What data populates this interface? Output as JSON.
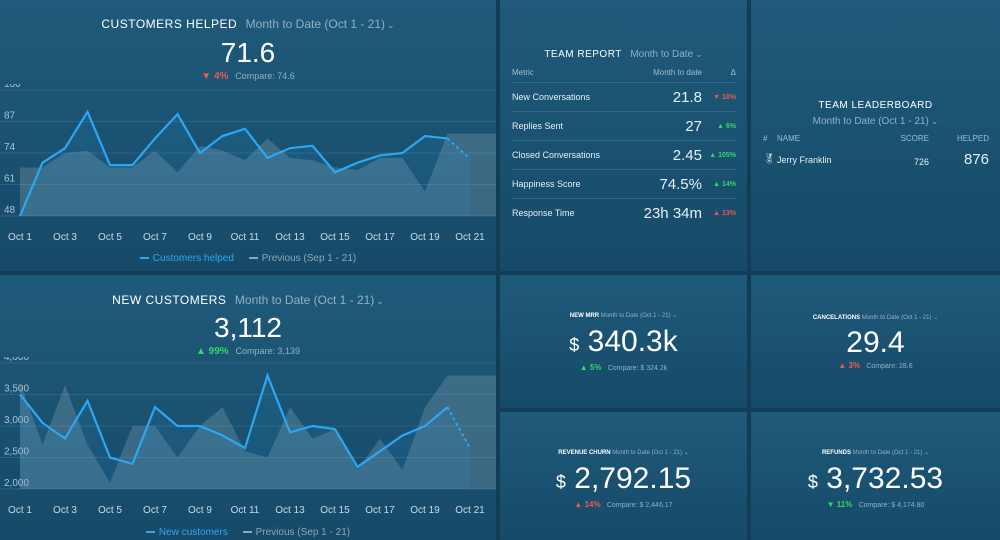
{
  "customers_helped": {
    "title": "CUSTOMERS HELPED",
    "period": "Month to Date (Oct 1 - 21)",
    "value": "71.6",
    "change": "4%",
    "compare": "Compare: 74.6",
    "legend": [
      "Customers helped",
      "Previous (Sep 1 - 21)"
    ],
    "chart_data": {
      "type": "line",
      "x": [
        "Oct 1",
        "Oct 2",
        "Oct 3",
        "Oct 4",
        "Oct 5",
        "Oct 6",
        "Oct 7",
        "Oct 8",
        "Oct 9",
        "Oct 10",
        "Oct 11",
        "Oct 12",
        "Oct 13",
        "Oct 14",
        "Oct 15",
        "Oct 16",
        "Oct 17",
        "Oct 18",
        "Oct 19",
        "Oct 20",
        "Oct 21"
      ],
      "xticks": [
        "Oct 1",
        "Oct 3",
        "Oct 5",
        "Oct 7",
        "Oct 9",
        "Oct 11",
        "Oct 13",
        "Oct 15",
        "Oct 17",
        "Oct 19",
        "Oct 21"
      ],
      "yticks": [
        100,
        87,
        74,
        61,
        48
      ],
      "ylim": [
        48,
        100
      ],
      "series": [
        {
          "name": "Customers helped",
          "values": [
            48,
            70,
            76,
            91,
            69,
            69,
            80,
            90,
            74,
            81,
            84,
            72,
            76,
            77,
            66,
            70,
            73,
            74,
            81,
            80,
            71.6
          ],
          "color": "#2da6f3"
        },
        {
          "name": "Previous (Sep 1 - 21)",
          "values": [
            68,
            68,
            74,
            75,
            68,
            68,
            75,
            66,
            77,
            75,
            71,
            80,
            72,
            71,
            68,
            67,
            72,
            72,
            58,
            82,
            82
          ],
          "color": "#8fa6b5"
        }
      ]
    }
  },
  "new_customers": {
    "title": "NEW CUSTOMERS",
    "period": "Month to Date (Oct 1 - 21)",
    "value": "3,112",
    "change": "99%",
    "compare": "Compare: 3,139",
    "legend": [
      "New customers",
      "Previous (Sep 1 - 21)"
    ],
    "chart_data": {
      "type": "line",
      "x": [
        "Oct 1",
        "Oct 2",
        "Oct 3",
        "Oct 4",
        "Oct 5",
        "Oct 6",
        "Oct 7",
        "Oct 8",
        "Oct 9",
        "Oct 10",
        "Oct 11",
        "Oct 12",
        "Oct 13",
        "Oct 14",
        "Oct 15",
        "Oct 16",
        "Oct 17",
        "Oct 18",
        "Oct 19",
        "Oct 20",
        "Oct 21"
      ],
      "xticks": [
        "Oct 1",
        "Oct 3",
        "Oct 5",
        "Oct 7",
        "Oct 9",
        "Oct 11",
        "Oct 13",
        "Oct 15",
        "Oct 17",
        "Oct 19",
        "Oct 21"
      ],
      "yticks": [
        "4,000",
        "3,500",
        "3,000",
        "2,500",
        "2,000"
      ],
      "ylim": [
        2000,
        4000
      ],
      "series": [
        {
          "name": "New customers",
          "values": [
            3500,
            3050,
            2800,
            3400,
            2500,
            2400,
            3300,
            3000,
            3000,
            2850,
            2650,
            3800,
            2900,
            3000,
            2950,
            2350,
            2600,
            2850,
            3000,
            3300,
            2650
          ],
          "color": "#2da6f3"
        },
        {
          "name": "Previous (Sep 1 - 21)",
          "values": [
            3700,
            2700,
            3650,
            2700,
            2100,
            3000,
            3000,
            2500,
            3000,
            3300,
            2600,
            2500,
            3300,
            2800,
            2950,
            2300,
            2800,
            2300,
            3300,
            3800,
            3800
          ],
          "color": "#8fa6b5"
        }
      ]
    }
  },
  "team_report": {
    "title": "TEAM REPORT",
    "period": "Month to Date",
    "headers": [
      "Metric",
      "Month to date",
      "Δ"
    ],
    "rows": [
      {
        "metric": "New Conversations",
        "value": "21.8",
        "delta": "10%",
        "dir": "down"
      },
      {
        "metric": "Replies Sent",
        "value": "27",
        "delta": "6%",
        "dir": "up"
      },
      {
        "metric": "Closed Conversations",
        "value": "2.45",
        "delta": "105%",
        "dir": "up"
      },
      {
        "metric": "Happiness Score",
        "value": "74.5%",
        "delta": "14%",
        "dir": "up"
      },
      {
        "metric": "Response Time",
        "value": "23h 34m",
        "delta": "13%",
        "dir": "down-red-up"
      }
    ]
  },
  "team_leaderboard": {
    "title": "TEAM LEADERBOARD",
    "period": "Month to Date (Oct 1 - 21)",
    "headers": [
      "#",
      "NAME",
      "SCORE",
      "HELPED"
    ],
    "rows": [
      {
        "rank_icon": "medal-icon",
        "name": "Jerry Franklin",
        "score": "726",
        "helped": "876"
      }
    ]
  },
  "kpis": {
    "mrr": {
      "title": "NEW MRR",
      "period": "Month to Date (Oct 1 - 21)",
      "currency": "$",
      "value": "340.3k",
      "change": "5%",
      "compare": "Compare: $ 324.2k",
      "dir": "up"
    },
    "cancelations": {
      "title": "CANCELATIONS",
      "period": "Month to Date (Oct 1 - 21)",
      "currency": "",
      "value": "29.4",
      "change": "3%",
      "compare": "Compare: 28.6",
      "dir": "up-red"
    },
    "churn": {
      "title": "REVENUE CHURN",
      "period": "Month to Date (Oct 1 - 21)",
      "currency": "$",
      "value": "2,792.15",
      "change": "14%",
      "compare": "Compare: $ 2,446.17",
      "dir": "up-red"
    },
    "refunds": {
      "title": "REFUNDS",
      "period": "Month to Date (Oct 1 - 21)",
      "currency": "$",
      "value": "3,732.53",
      "change": "11%",
      "compare": "Compare: $ 4,174.80",
      "dir": "down-green"
    }
  },
  "colors": {
    "up": "#37d46a",
    "down": "#f05a4b",
    "line": "#2da6f3",
    "prev": "#8fa6b5"
  }
}
